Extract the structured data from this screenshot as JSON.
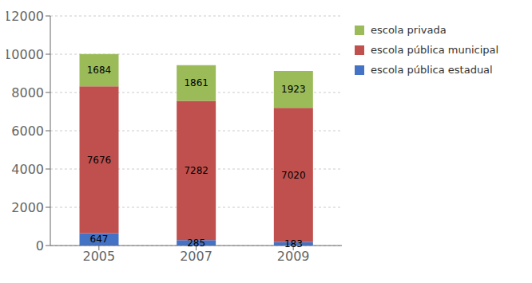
{
  "chart_data": {
    "type": "bar",
    "stacked": true,
    "data_labels": true,
    "grid": true,
    "legend": "right",
    "categories": [
      "2005",
      "2007",
      "2009"
    ],
    "series": [
      {
        "name": "escola pública estadual",
        "color": "#4472C4",
        "values": [
          647,
          285,
          183
        ]
      },
      {
        "name": "escola pública municipal",
        "color": "#C0504D",
        "values": [
          7676,
          7282,
          7020
        ]
      },
      {
        "name": "escola privada",
        "color": "#9BBB59",
        "values": [
          1684,
          1861,
          1923
        ]
      }
    ],
    "ylim": [
      0,
      12000
    ],
    "yticks": [
      0,
      2000,
      4000,
      6000,
      8000,
      10000,
      12000
    ]
  }
}
